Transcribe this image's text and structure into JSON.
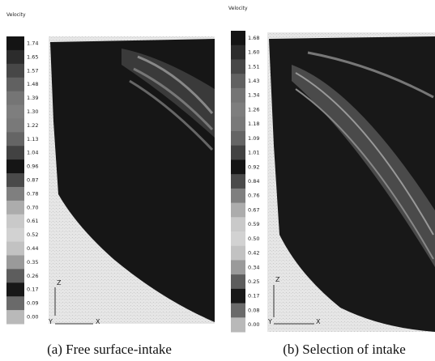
{
  "panels": [
    {
      "legend_title": "Velocity",
      "legend_ticks": [
        "1.74",
        "1.65",
        "1.57",
        "1.48",
        "1.39",
        "1.30",
        "1.22",
        "1.13",
        "1.04",
        "0.96",
        "0.87",
        "0.78",
        "0.70",
        "0.61",
        "0.52",
        "0.44",
        "0.35",
        "0.26",
        "0.17",
        "0.09",
        "0.00"
      ],
      "axes": {
        "vertical": "Z",
        "depth": "Y",
        "horizontal": "X"
      },
      "caption": "(a) Free surface-intake"
    },
    {
      "legend_title": "Velocity",
      "legend_ticks": [
        "1.68",
        "1.60",
        "1.51",
        "1.43",
        "1.34",
        "1.26",
        "1.18",
        "1.09",
        "1.01",
        "0.92",
        "0.84",
        "0.76",
        "0.67",
        "0.59",
        "0.50",
        "0.42",
        "0.34",
        "0.25",
        "0.17",
        "0.08",
        "0.00"
      ],
      "axes": {
        "vertical": "Z",
        "depth": "Y",
        "horizontal": "X"
      },
      "caption": "(b) Selection of intake"
    }
  ]
}
